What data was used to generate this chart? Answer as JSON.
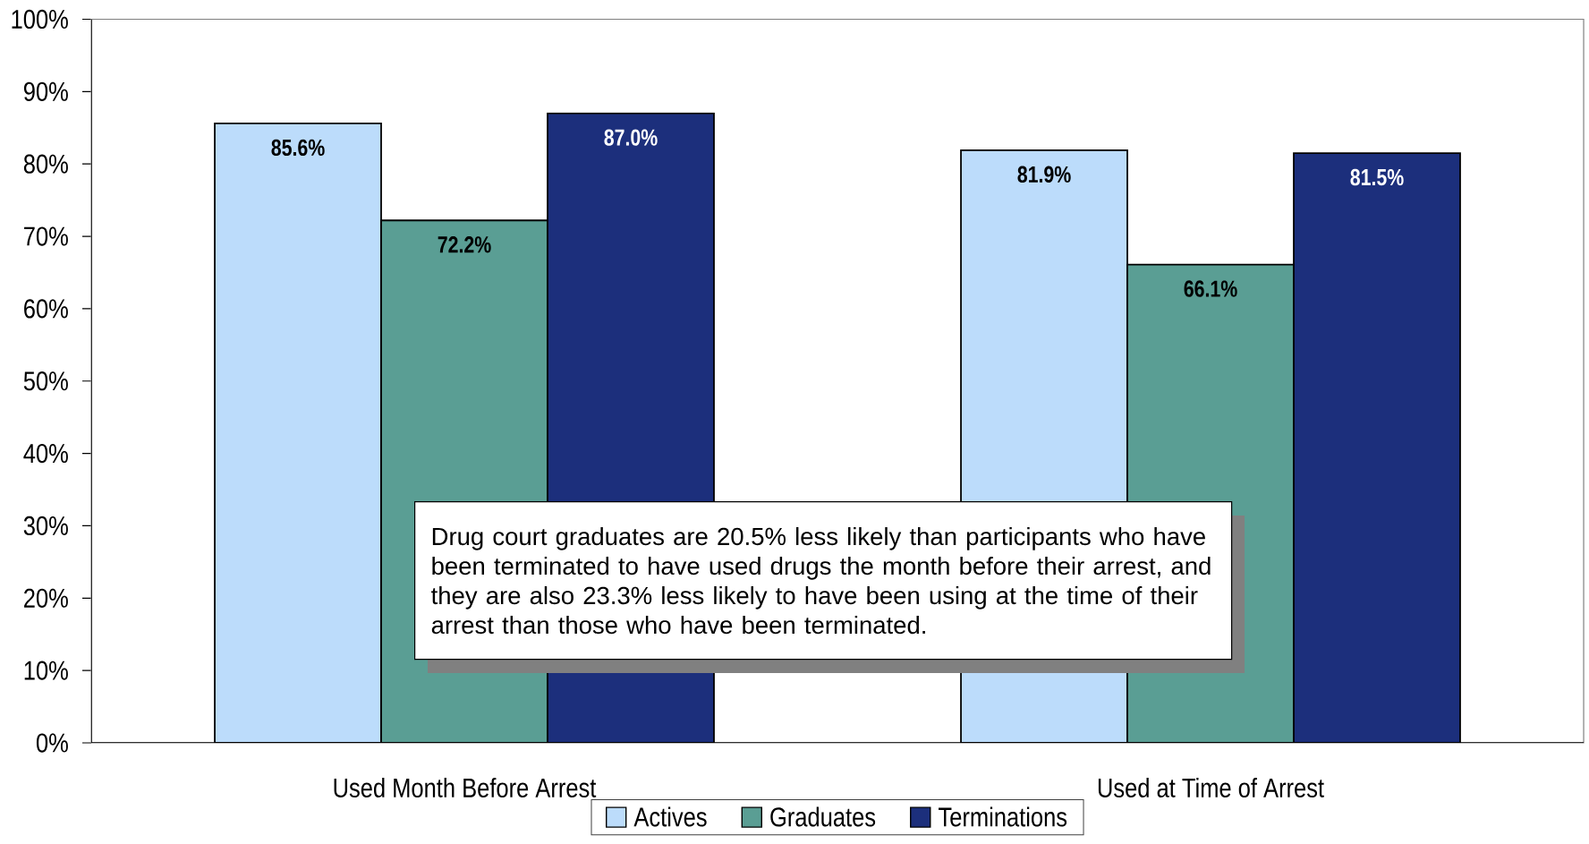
{
  "chart_data": {
    "type": "bar",
    "categories": [
      "Used Month Before Arrest",
      "Used at Time of Arrest"
    ],
    "series": [
      {
        "name": "Actives",
        "color": "#bcdcfb",
        "values": [
          85.6,
          81.9
        ],
        "value_labels": [
          "85.6%",
          "81.9%"
        ]
      },
      {
        "name": "Graduates",
        "color": "#5a9e94",
        "values": [
          72.2,
          66.1
        ],
        "value_labels": [
          "72.2%",
          "66.1%"
        ]
      },
      {
        "name": "Terminations",
        "color": "#1c2f7c",
        "values": [
          87.0,
          81.5
        ],
        "value_labels": [
          "87.0%",
          "81.5%"
        ]
      }
    ],
    "ylim": [
      0,
      100
    ],
    "yticks": [
      {
        "value": 0,
        "label": "0%"
      },
      {
        "value": 10,
        "label": "10%"
      },
      {
        "value": 20,
        "label": "20%"
      },
      {
        "value": 30,
        "label": "30%"
      },
      {
        "value": 40,
        "label": "40%"
      },
      {
        "value": 50,
        "label": "50%"
      },
      {
        "value": 60,
        "label": "60%"
      },
      {
        "value": 70,
        "label": "70%"
      },
      {
        "value": 80,
        "label": "80%"
      },
      {
        "value": 90,
        "label": "90%"
      },
      {
        "value": 100,
        "label": "100%"
      }
    ],
    "legend": "bottom",
    "annotations": [
      "Drug court graduates are 20.5% less likely than participants who have been terminated to have used drugs the month before their arrest, and they are also 23.3% less likely to have been using at the time of their arrest than those who have been terminated."
    ]
  }
}
